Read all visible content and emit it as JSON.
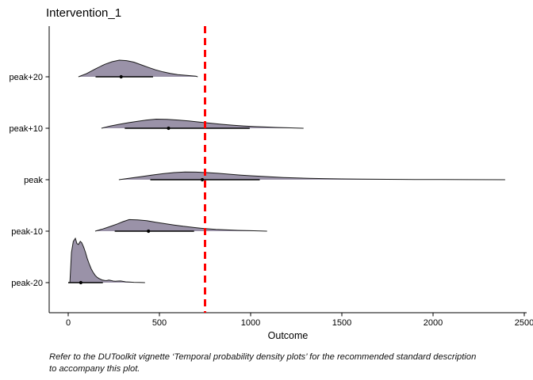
{
  "caption": {
    "line1": "Refer to the DUToolkit vignette ‘Temporal probability density plots’ for the recommended standard description",
    "line2": "to accompany this plot."
  },
  "chart_data": {
    "type": "area",
    "subtype": "ridgeline-density",
    "title": "Intervention_1",
    "xlabel": "Outcome",
    "ylabel": "",
    "xlim": [
      0,
      2500
    ],
    "x_ticks": [
      0,
      500,
      1000,
      1500,
      2000,
      2500
    ],
    "categories": [
      "peak+20",
      "peak+10",
      "peak",
      "peak-10",
      "peak-20"
    ],
    "grid": "off",
    "legend": "none",
    "fill_color": "#9A92A8",
    "outline_color": "#1a1a1a",
    "axis_color": "#000000",
    "reference_line": {
      "x": 750,
      "color": "#FF0000",
      "style": "dashed"
    },
    "series": [
      {
        "name": "peak+20",
        "interval": [
          150,
          465
        ],
        "point": 290,
        "density": [
          [
            56,
            0
          ],
          [
            100,
            0.07
          ],
          [
            150,
            0.18
          ],
          [
            200,
            0.28
          ],
          [
            240,
            0.34
          ],
          [
            280,
            0.375
          ],
          [
            320,
            0.365
          ],
          [
            360,
            0.33
          ],
          [
            400,
            0.27
          ],
          [
            440,
            0.21
          ],
          [
            480,
            0.155
          ],
          [
            520,
            0.11
          ],
          [
            560,
            0.075
          ],
          [
            600,
            0.05
          ],
          [
            650,
            0.03
          ],
          [
            700,
            0.012
          ],
          [
            710,
            0
          ]
        ]
      },
      {
        "name": "peak+10",
        "interval": [
          310,
          995
        ],
        "point": 550,
        "density": [
          [
            182,
            0
          ],
          [
            230,
            0.05
          ],
          [
            280,
            0.09
          ],
          [
            330,
            0.125
          ],
          [
            380,
            0.155
          ],
          [
            430,
            0.185
          ],
          [
            482,
            0.205
          ],
          [
            540,
            0.2
          ],
          [
            600,
            0.185
          ],
          [
            660,
            0.165
          ],
          [
            720,
            0.14
          ],
          [
            780,
            0.115
          ],
          [
            840,
            0.09
          ],
          [
            900,
            0.07
          ],
          [
            960,
            0.052
          ],
          [
            1020,
            0.038
          ],
          [
            1080,
            0.028
          ],
          [
            1140,
            0.018
          ],
          [
            1200,
            0.01
          ],
          [
            1250,
            0.005
          ],
          [
            1290,
            0
          ]
        ]
      },
      {
        "name": "peak",
        "interval": [
          450,
          1050
        ],
        "point": 735,
        "density": [
          [
            278,
            0
          ],
          [
            340,
            0.035
          ],
          [
            400,
            0.07
          ],
          [
            460,
            0.105
          ],
          [
            520,
            0.135
          ],
          [
            580,
            0.16
          ],
          [
            640,
            0.175
          ],
          [
            700,
            0.172
          ],
          [
            760,
            0.16
          ],
          [
            820,
            0.145
          ],
          [
            880,
            0.125
          ],
          [
            940,
            0.105
          ],
          [
            1000,
            0.09
          ],
          [
            1060,
            0.075
          ],
          [
            1120,
            0.062
          ],
          [
            1180,
            0.05
          ],
          [
            1250,
            0.04
          ],
          [
            1320,
            0.032
          ],
          [
            1400,
            0.025
          ],
          [
            1500,
            0.018
          ],
          [
            1600,
            0.013
          ],
          [
            1750,
            0.009
          ],
          [
            1900,
            0.006
          ],
          [
            2050,
            0.004
          ],
          [
            2200,
            0.0025
          ],
          [
            2395,
            0
          ]
        ]
      },
      {
        "name": "peak-10",
        "interval": [
          255,
          690
        ],
        "point": 440,
        "density": [
          [
            148,
            0
          ],
          [
            190,
            0.05
          ],
          [
            230,
            0.105
          ],
          [
            270,
            0.165
          ],
          [
            300,
            0.215
          ],
          [
            334,
            0.26
          ],
          [
            380,
            0.255
          ],
          [
            430,
            0.235
          ],
          [
            480,
            0.2
          ],
          [
            530,
            0.17
          ],
          [
            580,
            0.14
          ],
          [
            630,
            0.11
          ],
          [
            690,
            0.082
          ],
          [
            750,
            0.058
          ],
          [
            810,
            0.04
          ],
          [
            870,
            0.028
          ],
          [
            930,
            0.018
          ],
          [
            1000,
            0.01
          ],
          [
            1090,
            0
          ]
        ]
      },
      {
        "name": "peak-20",
        "interval": [
          0,
          190
        ],
        "point": 69,
        "density": [
          [
            9,
            0
          ],
          [
            13,
            0.3
          ],
          [
            18,
            0.68
          ],
          [
            28,
            0.93
          ],
          [
            39,
            1.0
          ],
          [
            48,
            0.88
          ],
          [
            56,
            0.86
          ],
          [
            66,
            0.93
          ],
          [
            74,
            0.9
          ],
          [
            85,
            0.8
          ],
          [
            95,
            0.68
          ],
          [
            104,
            0.55
          ],
          [
            115,
            0.42
          ],
          [
            126,
            0.31
          ],
          [
            137,
            0.23
          ],
          [
            148,
            0.165
          ],
          [
            160,
            0.115
          ],
          [
            172,
            0.085
          ],
          [
            185,
            0.06
          ],
          [
            200,
            0.05
          ],
          [
            212,
            0.047
          ],
          [
            222,
            0.058
          ],
          [
            233,
            0.05
          ],
          [
            247,
            0.035
          ],
          [
            258,
            0.03
          ],
          [
            272,
            0.036
          ],
          [
            287,
            0.038
          ],
          [
            300,
            0.028
          ],
          [
            315,
            0.018
          ],
          [
            335,
            0.012
          ],
          [
            360,
            0.008
          ],
          [
            390,
            0.004
          ],
          [
            421,
            0
          ]
        ]
      }
    ]
  }
}
